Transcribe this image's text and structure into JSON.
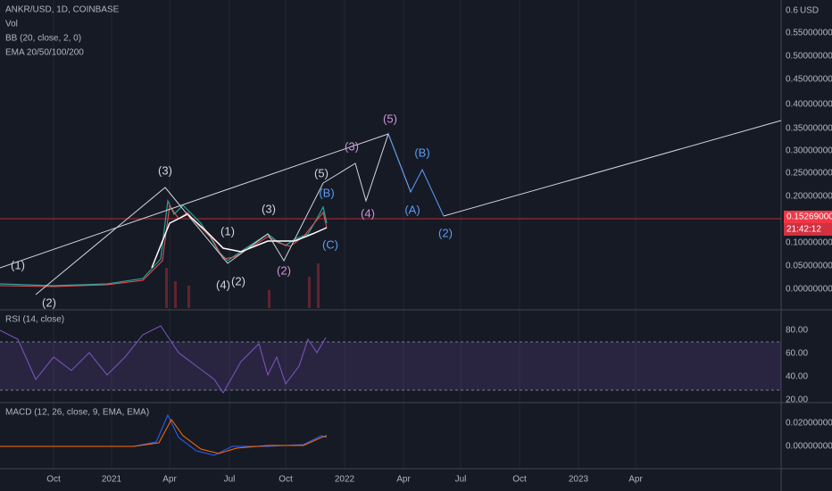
{
  "header": {
    "symbol": "ANKR/USD, 1D, COINBASE",
    "indicators": [
      "Vol",
      "BB (20, close, 2, 0)",
      "EMA 20/50/100/200"
    ]
  },
  "price_axis": {
    "currency": "USD",
    "ticks": [
      "0.6",
      "0.55000000",
      "0.50000000",
      "0.45000000",
      "0.40000000",
      "0.35000000",
      "0.30000000",
      "0.25000000",
      "0.20000000",
      "0.15000000",
      "0.10000000",
      "0.05000000",
      "0.00000000"
    ]
  },
  "last_price": "0.15269000",
  "countdown": "21:42:12",
  "rsi": {
    "title": "RSI (14, close)",
    "ticks": [
      "80.00",
      "60.00",
      "40.00",
      "20.00"
    ]
  },
  "macd": {
    "title": "MACD (12, 26, close, 9, EMA, EMA)",
    "ticks": [
      "0.02000000",
      "0.00000000"
    ]
  },
  "time_axis": [
    "Oct",
    "2021",
    "Apr",
    "Jul",
    "Oct",
    "2022",
    "Apr",
    "Jul",
    "Oct",
    "2023",
    "Apr"
  ],
  "wave_labels": [
    "(1)",
    "(2)",
    "(3)",
    "(1)",
    "(4)",
    "(2)",
    "(3)",
    "(2)",
    "(5)",
    "(B)",
    "(C)",
    "(3)",
    "(4)",
    "(5)",
    "(A)",
    "(B)",
    "(2)"
  ]
}
